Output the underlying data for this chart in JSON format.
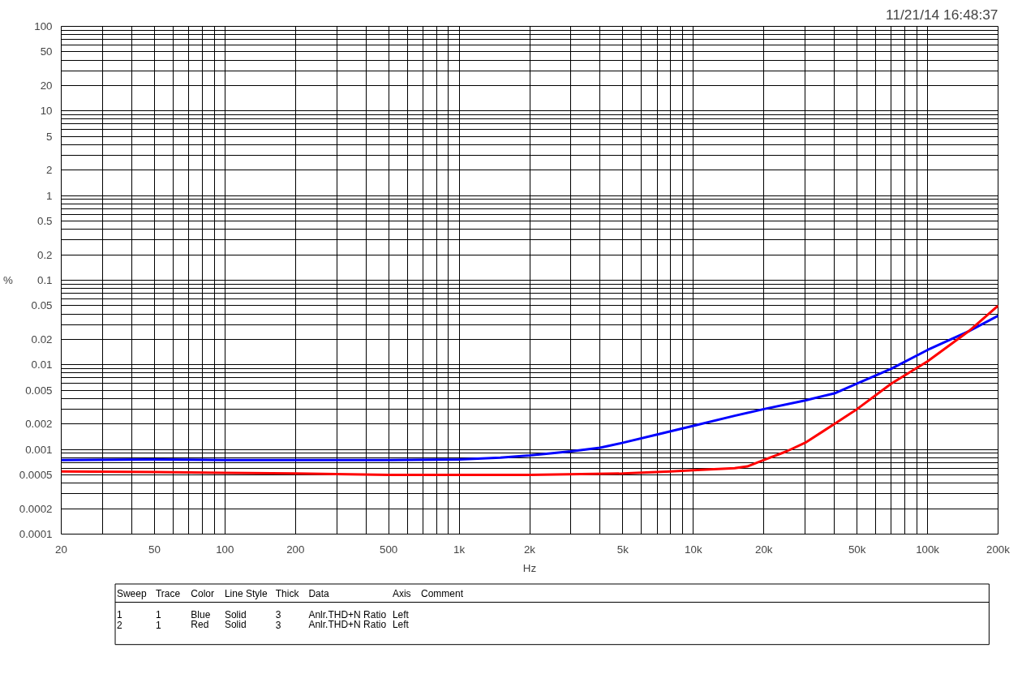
{
  "chart_data": {
    "type": "line",
    "subtitle": "11/21/14 16:48:37",
    "xlabel": "Hz",
    "ylabel": "%",
    "log": "xy",
    "grid": true,
    "line_style": "solid",
    "marker": "none",
    "xlim": [
      20,
      200000
    ],
    "xticks": [
      20,
      {
        "value": 30,
        "label": null
      },
      {
        "value": 40,
        "label": null
      },
      50,
      {
        "value": 60,
        "label": null
      },
      {
        "value": 70,
        "label": null
      },
      {
        "value": 80,
        "label": null
      },
      {
        "value": 90,
        "label": null
      },
      100,
      200,
      {
        "value": 300,
        "label": null
      },
      {
        "value": 400,
        "label": null
      },
      500,
      {
        "value": 600,
        "label": null
      },
      {
        "value": 700,
        "label": null
      },
      {
        "value": 800,
        "label": null
      },
      {
        "value": 900,
        "label": null
      },
      {
        "value": 1000,
        "label": "1k"
      },
      {
        "value": 2000,
        "label": "2k"
      },
      {
        "value": 3000,
        "label": null
      },
      {
        "value": 4000,
        "label": null
      },
      {
        "value": 5000,
        "label": "5k"
      },
      {
        "value": 6000,
        "label": null
      },
      {
        "value": 7000,
        "label": null
      },
      {
        "value": 8000,
        "label": null
      },
      {
        "value": 9000,
        "label": null
      },
      {
        "value": 10000,
        "label": "10k"
      },
      {
        "value": 20000,
        "label": "20k"
      },
      {
        "value": 30000,
        "label": null
      },
      {
        "value": 40000,
        "label": null
      },
      {
        "value": 50000,
        "label": "50k"
      },
      {
        "value": 60000,
        "label": null
      },
      {
        "value": 70000,
        "label": null
      },
      {
        "value": 80000,
        "label": null
      },
      {
        "value": 90000,
        "label": null
      },
      {
        "value": 100000,
        "label": "100k"
      },
      {
        "value": 200000,
        "label": "200k"
      }
    ],
    "ylim": [
      0.0001,
      100
    ],
    "yticks": [
      0.0001,
      0.0002,
      {
        "value": 0.0003,
        "label": null
      },
      {
        "value": 0.0004,
        "label": null
      },
      0.0005,
      {
        "value": 0.0006,
        "label": null
      },
      {
        "value": 0.0007,
        "label": null
      },
      {
        "value": 0.0008,
        "label": null
      },
      {
        "value": 0.0009,
        "label": null
      },
      0.001,
      0.002,
      {
        "value": 0.003,
        "label": null
      },
      {
        "value": 0.004,
        "label": null
      },
      0.005,
      {
        "value": 0.006,
        "label": null
      },
      {
        "value": 0.007,
        "label": null
      },
      {
        "value": 0.008,
        "label": null
      },
      {
        "value": 0.009,
        "label": null
      },
      0.01,
      0.02,
      {
        "value": 0.03,
        "label": null
      },
      {
        "value": 0.04,
        "label": null
      },
      0.05,
      {
        "value": 0.06,
        "label": null
      },
      {
        "value": 0.07,
        "label": null
      },
      {
        "value": 0.08,
        "label": null
      },
      {
        "value": 0.09,
        "label": null
      },
      0.1,
      0.2,
      {
        "value": 0.3,
        "label": null
      },
      {
        "value": 0.4,
        "label": null
      },
      0.5,
      {
        "value": 0.6,
        "label": null
      },
      {
        "value": 0.7,
        "label": null
      },
      {
        "value": 0.8,
        "label": null
      },
      {
        "value": 0.9,
        "label": null
      },
      1,
      2,
      {
        "value": 3,
        "label": null
      },
      {
        "value": 4,
        "label": null
      },
      5,
      {
        "value": 6,
        "label": null
      },
      {
        "value": 7,
        "label": null
      },
      {
        "value": 8,
        "label": null
      },
      {
        "value": 9,
        "label": null
      },
      10,
      20,
      {
        "value": 30,
        "label": null
      },
      {
        "value": 40,
        "label": null
      },
      50,
      {
        "value": 60,
        "label": null
      },
      {
        "value": 70,
        "label": null
      },
      {
        "value": 80,
        "label": null
      },
      {
        "value": 90,
        "label": null
      },
      100
    ],
    "series": [
      {
        "color": "#0000ff",
        "x": [
          20,
          50,
          100,
          200,
          500,
          1000,
          1500,
          2000,
          3000,
          4000,
          5000,
          7000,
          10000,
          15000,
          20000,
          30000,
          40000,
          50000,
          70000,
          100000,
          150000,
          200000
        ],
        "values": [
          0.00075,
          0.00076,
          0.00075,
          0.00075,
          0.00075,
          0.00076,
          0.0008,
          0.00085,
          0.00095,
          0.00105,
          0.0012,
          0.0015,
          0.0019,
          0.0025,
          0.003,
          0.0038,
          0.0046,
          0.006,
          0.009,
          0.015,
          0.025,
          0.038
        ]
      },
      {
        "color": "#ff0000",
        "x": [
          20,
          50,
          100,
          200,
          500,
          1000,
          2000,
          5000,
          8000,
          10000,
          15000,
          17000,
          20000,
          25000,
          30000,
          40000,
          50000,
          70000,
          100000,
          150000,
          200000
        ],
        "values": [
          0.00055,
          0.00054,
          0.00053,
          0.00052,
          0.0005,
          0.0005,
          0.0005,
          0.00052,
          0.00055,
          0.00057,
          0.0006,
          0.00063,
          0.00075,
          0.00095,
          0.0012,
          0.002,
          0.003,
          0.006,
          0.011,
          0.025,
          0.05
        ]
      }
    ],
    "annotations": [
      "Sweep",
      "Trace",
      "Color",
      "Line Style",
      "Thick",
      "Data",
      "Axis",
      "Comment",
      "1",
      "1",
      "Blue",
      "Solid",
      "3",
      "Anlr.THD+N Ratio",
      "Left",
      "2",
      "1",
      "Red",
      "Solid",
      "3",
      "Anlr.THD+N Ratio",
      "Left"
    ]
  }
}
